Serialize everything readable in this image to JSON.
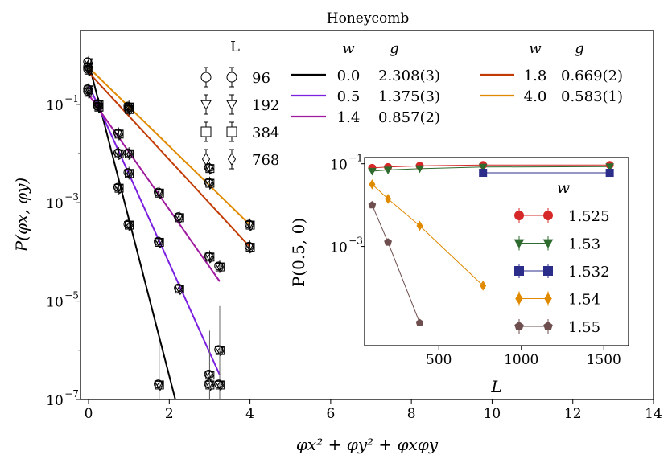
{
  "chart_data": {
    "type": "scatter",
    "title": "Honeycomb",
    "xlabel": "φx² + φy² + φxφy",
    "ylabel": "P(φx, φy)",
    "xlim": [
      -0.2,
      14
    ],
    "ylim_log10": [
      -7,
      0.5
    ],
    "xticks": [
      0,
      2,
      4,
      6,
      8,
      10,
      12,
      14
    ],
    "yticks": [
      {
        "exp": -1,
        "label": "10"
      },
      {
        "exp": -3,
        "label": "10"
      },
      {
        "exp": -5,
        "label": "10"
      },
      {
        "exp": -7,
        "label": "10"
      }
    ],
    "ytick_exps": [
      "−1",
      "−3",
      "−5",
      "−7"
    ],
    "markers_legend": {
      "title": "L",
      "entries": [
        {
          "marker": "circle",
          "label": "96"
        },
        {
          "marker": "triangle-down",
          "label": "192"
        },
        {
          "marker": "square",
          "label": "384"
        },
        {
          "marker": "diamond",
          "label": "768"
        }
      ]
    },
    "fit_legend": {
      "col_w": "w",
      "col_g": "g",
      "entries": [
        {
          "w": "0.0",
          "g": "2.308(3)",
          "color": "#000000"
        },
        {
          "w": "0.5",
          "g": "1.375(3)",
          "color": "#7b1fe0"
        },
        {
          "w": "1.4",
          "g": "0.857(2)",
          "color": "#a01aa0"
        },
        {
          "w": "1.8",
          "g": "0.669(2)",
          "color": "#c23b05"
        },
        {
          "w": "4.0",
          "g": "0.583(1)",
          "color": "#e08a00"
        }
      ]
    },
    "series": [
      {
        "name": "w=0.0",
        "color": "#000000",
        "fit_x": [
          0,
          2.15
        ],
        "fit_log10": [
          -0.15,
          -7.0
        ],
        "points": [
          [
            0,
            -0.3
          ],
          [
            0.25,
            -1.0
          ],
          [
            0.75,
            -2.7
          ],
          [
            1.0,
            -3.45
          ],
          [
            1.75,
            -6.7
          ],
          [
            3.0,
            -6.7
          ],
          [
            3.25,
            -6.0
          ]
        ]
      },
      {
        "name": "w=0.5",
        "color": "#7b1fe0",
        "fit_x": [
          0,
          3.25
        ],
        "fit_log10": [
          -0.6,
          -6.5
        ],
        "points": [
          [
            0,
            -0.7
          ],
          [
            0.25,
            -1.05
          ],
          [
            0.75,
            -2.0
          ],
          [
            1.0,
            -2.4
          ],
          [
            1.75,
            -3.8
          ],
          [
            2.25,
            -4.75
          ],
          [
            3.0,
            -6.5
          ],
          [
            3.25,
            -6.7
          ]
        ]
      },
      {
        "name": "w=1.4",
        "color": "#a01aa0",
        "fit_x": [
          0,
          3.25
        ],
        "fit_log10": [
          -0.8,
          -4.6
        ],
        "points": [
          [
            0,
            -0.75
          ],
          [
            0.25,
            -1.05
          ],
          [
            0.75,
            -1.6
          ],
          [
            1.0,
            -2.0
          ],
          [
            1.75,
            -2.8
          ],
          [
            2.25,
            -3.3
          ],
          [
            3.0,
            -4.1
          ],
          [
            3.25,
            -4.3
          ]
        ]
      },
      {
        "name": "w=1.8",
        "color": "#c23b05",
        "fit_x": [
          0,
          4.0
        ],
        "fit_log10": [
          -0.35,
          -3.9
        ],
        "points": [
          [
            0,
            -0.25
          ],
          [
            1.0,
            -1.1
          ],
          [
            3.0,
            -2.6
          ],
          [
            4.0,
            -3.9
          ]
        ]
      },
      {
        "name": "w=4.0",
        "color": "#e08a00",
        "fit_x": [
          0,
          4.0
        ],
        "fit_log10": [
          -0.25,
          -3.45
        ],
        "points": [
          [
            0,
            -0.15
          ],
          [
            1.0,
            -1.05
          ],
          [
            3.0,
            -2.3
          ],
          [
            4.0,
            -3.45
          ]
        ]
      }
    ],
    "inset": {
      "type": "line",
      "xlabel": "L",
      "ylabel": "P(0.5, 0)",
      "xlim": [
        50,
        1650
      ],
      "ylim_log10": [
        -5.4,
        -0.85
      ],
      "xticks": [
        500,
        1000,
        1500
      ],
      "yticks": [
        {
          "exp": -1,
          "label": "10"
        },
        {
          "exp": -3,
          "label": "10"
        }
      ],
      "ytick_exps": [
        "−1",
        "−3"
      ],
      "legend_title": "w",
      "series": [
        {
          "label": "1.525",
          "marker": "circle",
          "color": "#d62828",
          "x": [
            96,
            192,
            384,
            768,
            1536
          ],
          "log10": [
            -1.1,
            -1.08,
            -1.05,
            -1.03,
            -1.03
          ]
        },
        {
          "label": "1.53",
          "marker": "triangle-down",
          "color": "#2e6b2e",
          "x": [
            96,
            192,
            384,
            768,
            1536
          ],
          "log10": [
            -1.18,
            -1.15,
            -1.12,
            -1.08,
            -1.07
          ]
        },
        {
          "label": "1.532",
          "marker": "square",
          "color": "#2c2c8a",
          "x": [
            768,
            1536
          ],
          "log10": [
            -1.22,
            -1.22
          ]
        },
        {
          "label": "1.54",
          "marker": "diamond",
          "color": "#e08a00",
          "x": [
            96,
            192,
            384,
            768
          ],
          "log10": [
            -1.5,
            -1.85,
            -2.5,
            -3.95
          ]
        },
        {
          "label": "1.55",
          "marker": "pentagon",
          "color": "#6e4e4e",
          "x": [
            96,
            192,
            384
          ],
          "log10": [
            -2.0,
            -2.9,
            -4.85
          ]
        }
      ]
    }
  }
}
